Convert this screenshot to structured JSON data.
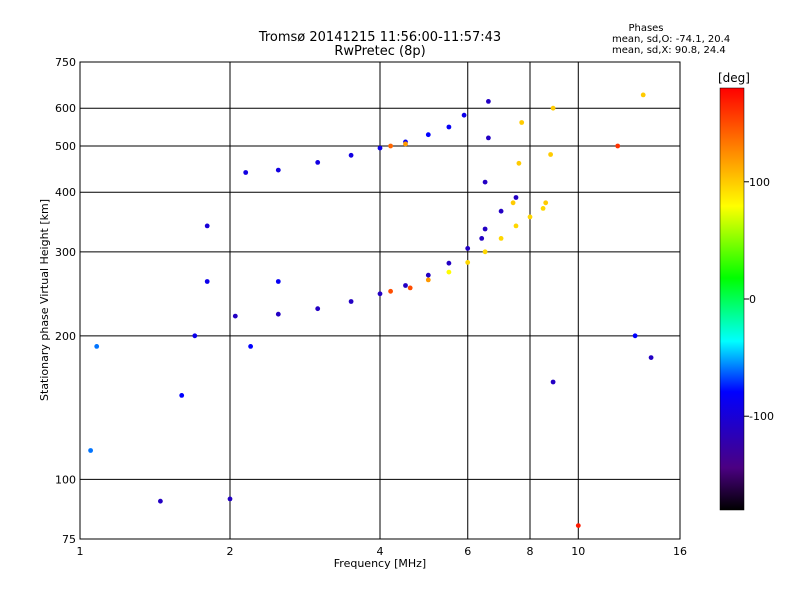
{
  "chart_data": {
    "type": "scatter",
    "title": "Tromsø 20141215 11:56:00-11:57:43",
    "subtitle": "RwPretec (8p)",
    "xlabel": "Frequency [MHz]",
    "ylabel": "Stationary phase Virtual Height [km]",
    "x_scale": "log",
    "y_scale": "log",
    "xlim": [
      1,
      16
    ],
    "ylim": [
      75,
      750
    ],
    "x_ticks": [
      1,
      2,
      4,
      6,
      8,
      10,
      16
    ],
    "y_ticks": [
      75,
      100,
      200,
      300,
      400,
      500,
      600,
      750
    ],
    "grid": true,
    "stats": {
      "title": "Phases",
      "line1": "mean, sd,O: -74.1, 20.4",
      "line2": "mean, sd,X:  90.8, 24.4"
    },
    "colorbar": {
      "label": "[deg]",
      "range": [
        -180,
        180
      ],
      "ticks": [
        100,
        0,
        -100
      ]
    },
    "series": [
      {
        "values": [
          {
            "x": 2.15,
            "y": 440,
            "phase": -95
          },
          {
            "x": 2.5,
            "y": 445,
            "phase": -95
          },
          {
            "x": 3.0,
            "y": 462,
            "phase": -95
          },
          {
            "x": 3.5,
            "y": 478,
            "phase": -95
          },
          {
            "x": 4.0,
            "y": 495,
            "phase": -90
          },
          {
            "x": 4.5,
            "y": 510,
            "phase": -85
          },
          {
            "x": 5.0,
            "y": 528,
            "phase": -80
          },
          {
            "x": 5.5,
            "y": 548,
            "phase": -85
          },
          {
            "x": 5.9,
            "y": 580,
            "phase": -90
          },
          {
            "x": 4.2,
            "y": 500,
            "phase": 140
          },
          {
            "x": 4.5,
            "y": 505,
            "phase": 120
          },
          {
            "x": 2.05,
            "y": 220,
            "phase": -110
          },
          {
            "x": 2.5,
            "y": 222,
            "phase": -110
          },
          {
            "x": 3.0,
            "y": 228,
            "phase": -110
          },
          {
            "x": 3.5,
            "y": 236,
            "phase": -110
          },
          {
            "x": 4.0,
            "y": 245,
            "phase": -110
          },
          {
            "x": 4.5,
            "y": 255,
            "phase": -110
          },
          {
            "x": 5.0,
            "y": 268,
            "phase": -110
          },
          {
            "x": 5.5,
            "y": 284,
            "phase": -110
          },
          {
            "x": 6.0,
            "y": 305,
            "phase": -110
          },
          {
            "x": 6.5,
            "y": 335,
            "phase": -110
          },
          {
            "x": 7.0,
            "y": 365,
            "phase": -110
          },
          {
            "x": 7.5,
            "y": 390,
            "phase": -110
          },
          {
            "x": 4.2,
            "y": 248,
            "phase": 150
          },
          {
            "x": 4.6,
            "y": 252,
            "phase": 150
          },
          {
            "x": 5.0,
            "y": 262,
            "phase": 120
          },
          {
            "x": 5.5,
            "y": 272,
            "phase": 80
          },
          {
            "x": 6.0,
            "y": 285,
            "phase": 95
          },
          {
            "x": 6.5,
            "y": 300,
            "phase": 95
          },
          {
            "x": 7.0,
            "y": 320,
            "phase": 95
          },
          {
            "x": 7.5,
            "y": 340,
            "phase": 95
          },
          {
            "x": 8.0,
            "y": 355,
            "phase": 95
          },
          {
            "x": 8.5,
            "y": 370,
            "phase": 95
          },
          {
            "x": 6.4,
            "y": 320,
            "phase": -110
          },
          {
            "x": 6.5,
            "y": 420,
            "phase": -110
          },
          {
            "x": 6.6,
            "y": 520,
            "phase": -110
          },
          {
            "x": 6.6,
            "y": 620,
            "phase": -110
          },
          {
            "x": 7.4,
            "y": 380,
            "phase": 100
          },
          {
            "x": 7.6,
            "y": 460,
            "phase": 100
          },
          {
            "x": 7.7,
            "y": 560,
            "phase": 100
          },
          {
            "x": 8.6,
            "y": 380,
            "phase": 100
          },
          {
            "x": 8.8,
            "y": 480,
            "phase": 100
          },
          {
            "x": 8.9,
            "y": 600,
            "phase": 100
          },
          {
            "x": 1.6,
            "y": 150,
            "phase": -80
          },
          {
            "x": 1.7,
            "y": 200,
            "phase": -90
          },
          {
            "x": 1.8,
            "y": 260,
            "phase": -90
          },
          {
            "x": 1.8,
            "y": 340,
            "phase": -100
          },
          {
            "x": 2.2,
            "y": 190,
            "phase": -80
          },
          {
            "x": 2.5,
            "y": 260,
            "phase": -85
          },
          {
            "x": 1.05,
            "y": 115,
            "phase": -60
          },
          {
            "x": 1.08,
            "y": 190,
            "phase": -60
          },
          {
            "x": 1.45,
            "y": 90,
            "phase": -110
          },
          {
            "x": 2.0,
            "y": 91,
            "phase": -110
          },
          {
            "x": 10.0,
            "y": 80,
            "phase": 170
          },
          {
            "x": 13.0,
            "y": 200,
            "phase": -80
          },
          {
            "x": 14.0,
            "y": 180,
            "phase": -110
          },
          {
            "x": 8.9,
            "y": 160,
            "phase": -110
          },
          {
            "x": 12.0,
            "y": 500,
            "phase": 160
          },
          {
            "x": 13.5,
            "y": 640,
            "phase": 100
          }
        ]
      }
    ]
  }
}
